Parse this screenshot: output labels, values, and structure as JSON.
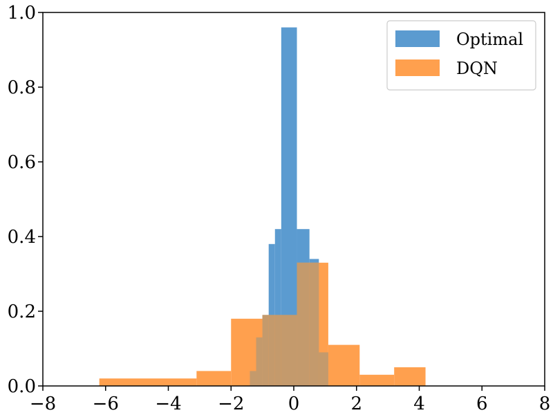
{
  "chart_data": {
    "type": "bar",
    "subtype": "histogram",
    "title": "",
    "xlabel": "",
    "ylabel": "",
    "xlim": [
      -8,
      8
    ],
    "ylim": [
      0,
      1.0
    ],
    "xticks": [
      {
        "value": -8,
        "label": "−8"
      },
      {
        "value": -6,
        "label": "−6"
      },
      {
        "value": -4,
        "label": "−4"
      },
      {
        "value": -2,
        "label": "−2"
      },
      {
        "value": 0,
        "label": "0"
      },
      {
        "value": 2,
        "label": "2"
      },
      {
        "value": 4,
        "label": "4"
      },
      {
        "value": 6,
        "label": "6"
      },
      {
        "value": 8,
        "label": "8"
      }
    ],
    "yticks": [
      {
        "value": 0.0,
        "label": "0.0"
      },
      {
        "value": 0.2,
        "label": "0.2"
      },
      {
        "value": 0.4,
        "label": "0.4"
      },
      {
        "value": 0.6,
        "label": "0.6"
      },
      {
        "value": 0.8,
        "label": "0.8"
      },
      {
        "value": 1.0,
        "label": "1.0"
      }
    ],
    "grid": false,
    "legend_position": "top-right",
    "overlap_color": "#c49a6c",
    "series": [
      {
        "name": "Optimal",
        "color": "#5b9bd0",
        "bins": [
          {
            "x0": -1.4,
            "x1": -1.2,
            "value": 0.04
          },
          {
            "x0": -1.2,
            "x1": -1.0,
            "value": 0.13
          },
          {
            "x0": -1.0,
            "x1": -0.8,
            "value": 0.19
          },
          {
            "x0": -0.8,
            "x1": -0.6,
            "value": 0.38
          },
          {
            "x0": -0.6,
            "x1": -0.4,
            "value": 0.42
          },
          {
            "x0": -0.4,
            "x1": 0.1,
            "value": 0.96
          },
          {
            "x0": 0.1,
            "x1": 0.5,
            "value": 0.42
          },
          {
            "x0": 0.5,
            "x1": 0.8,
            "value": 0.34
          },
          {
            "x0": 0.8,
            "x1": 1.1,
            "value": 0.09
          }
        ]
      },
      {
        "name": "DQN",
        "color": "#ffa04e",
        "bins": [
          {
            "x0": -6.2,
            "x1": -3.1,
            "value": 0.02
          },
          {
            "x0": -3.1,
            "x1": -2.0,
            "value": 0.04
          },
          {
            "x0": -2.0,
            "x1": -1.0,
            "value": 0.18
          },
          {
            "x0": -1.0,
            "x1": 0.1,
            "value": 0.19
          },
          {
            "x0": 0.1,
            "x1": 1.1,
            "value": 0.33
          },
          {
            "x0": 1.1,
            "x1": 2.1,
            "value": 0.11
          },
          {
            "x0": 2.1,
            "x1": 3.2,
            "value": 0.03
          },
          {
            "x0": 3.2,
            "x1": 4.2,
            "value": 0.05
          }
        ]
      }
    ]
  }
}
